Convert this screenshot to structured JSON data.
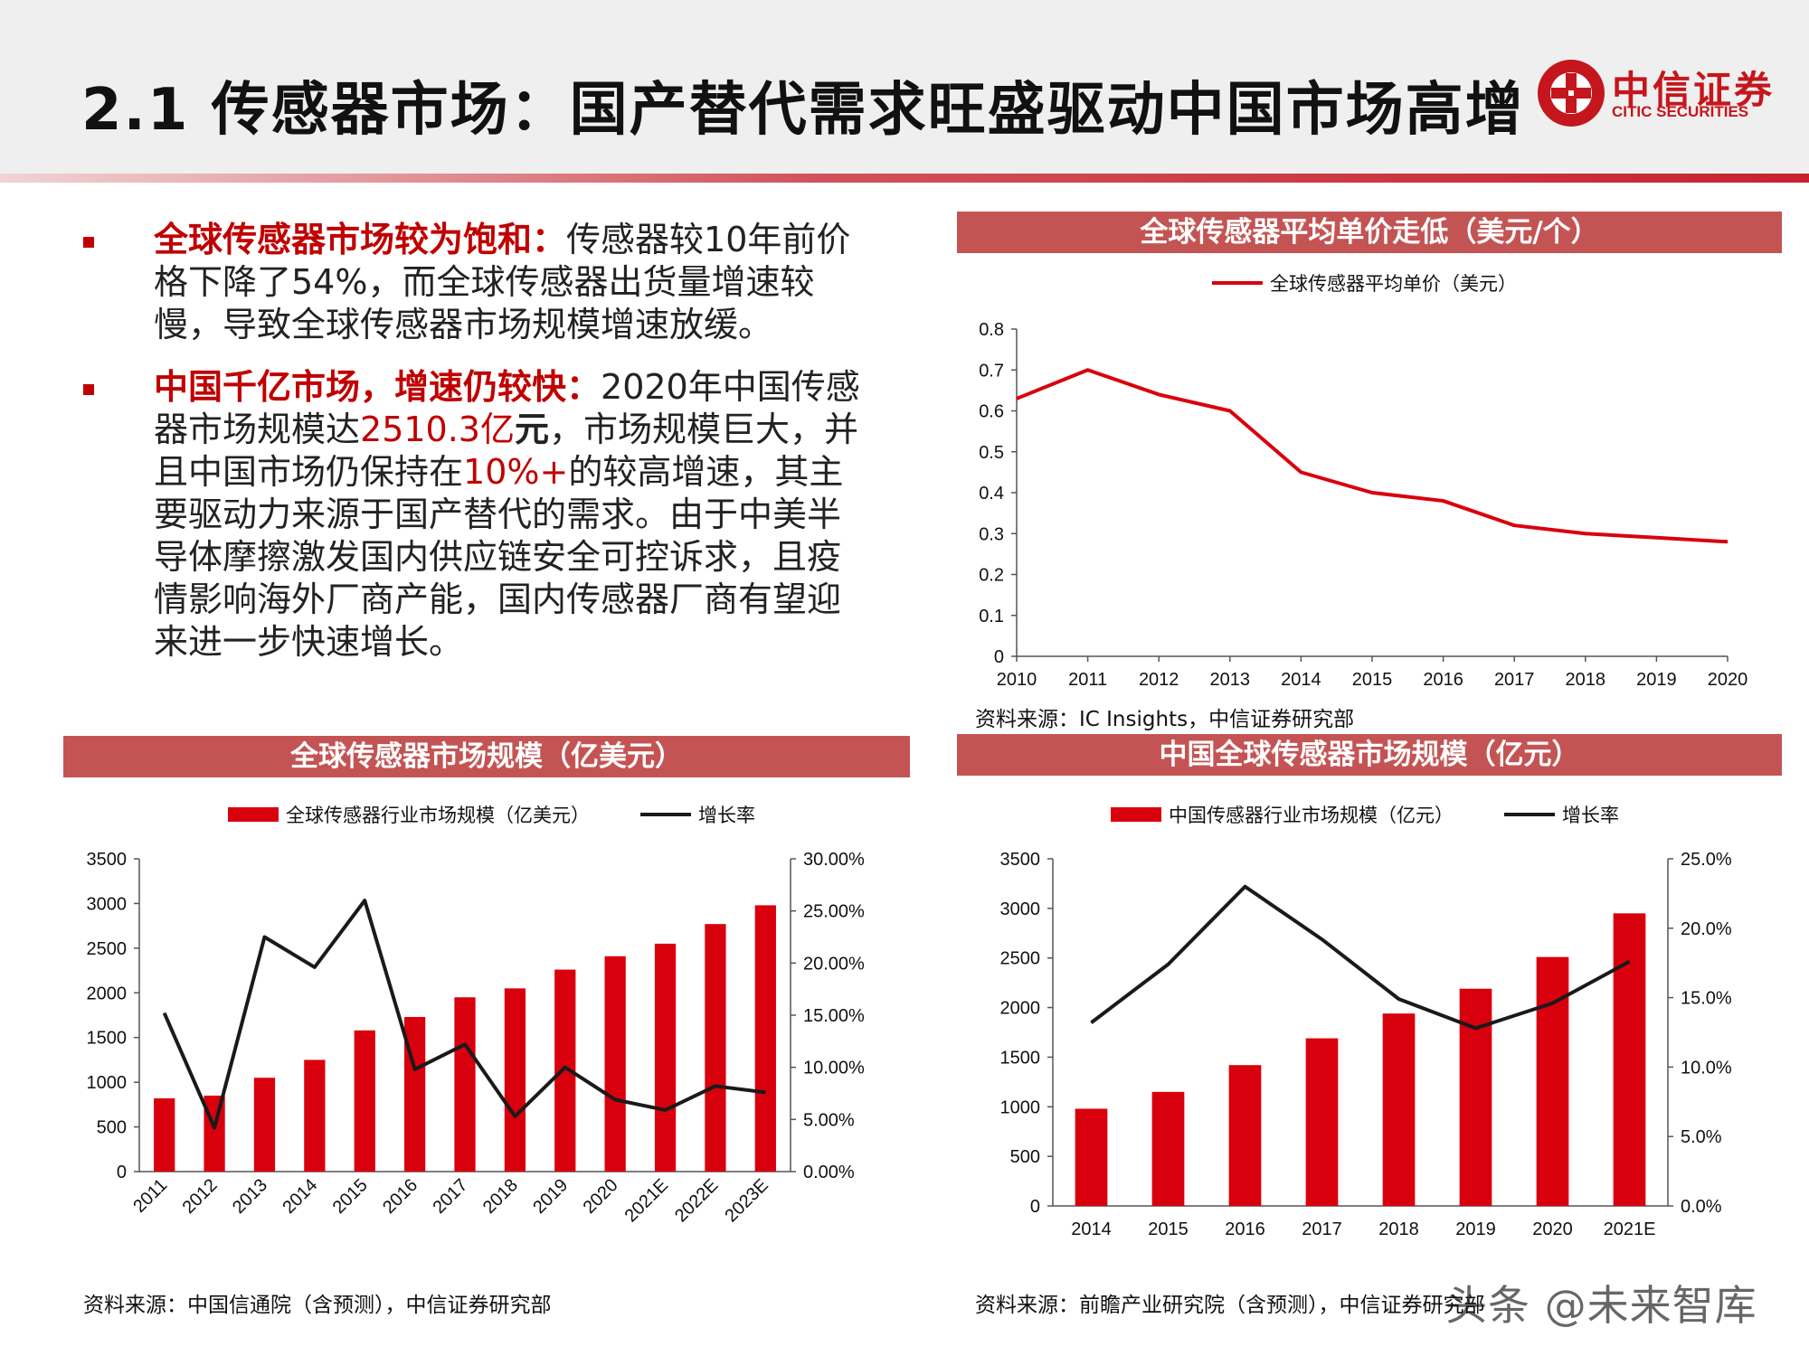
{
  "header": {
    "title": "2.1 传感器市场：国产替代需求旺盛驱动中国市场高增",
    "logo_cn": "中信证券",
    "logo_en": "CITIC SECURITIES"
  },
  "bullets": [
    {
      "heading": "全球传感器市场较为饱和：",
      "text": "传感器较10年前价格下降了54%，而全球传感器出货量增速较慢，导致全球传感器市场规模增速放缓。"
    },
    {
      "heading": "中国千亿市场，增速仍较快：",
      "t1": "2020年中国传感器市场规模达",
      "v1": "2510.3亿",
      "t2": "元",
      "t3": "，市场规模巨大，并且中国市场仍保持在",
      "v2": "10%+",
      "t4": "的较高增速，其主要驱动力来源于国产替代的需求。由于中美半导体摩擦激发国内供应链安全可控诉求，且疫情影响海外厂商产能，国内传感器厂商有望迎来进一步快速增长。"
    }
  ],
  "panels": {
    "price": {
      "title": "全球传感器平均单价走低（美元/个）",
      "source": "资料来源：IC Insights，中信证券研究部"
    },
    "global": {
      "title": "全球传感器市场规模（亿美元）",
      "source": "资料来源：中国信通院（含预测），中信证券研究部"
    },
    "china": {
      "title": "中国全球传感器市场规模（亿元）",
      "source": "资料来源：前瞻产业研究院（含预测），中信证券研究部"
    }
  },
  "watermark": "头条 @未来智库",
  "colors": {
    "red": "#d9000d",
    "black": "#1a1a1a",
    "panel_header": "#c45454"
  },
  "chart_data": [
    {
      "type": "line",
      "x": [
        "2010",
        "2011",
        "2012",
        "2013",
        "2014",
        "2015",
        "2016",
        "2017",
        "2018",
        "2019",
        "2020"
      ],
      "series": [
        {
          "name": "全球传感器平均单价（美元）",
          "values": [
            0.63,
            0.7,
            0.64,
            0.6,
            0.45,
            0.4,
            0.38,
            0.32,
            0.3,
            0.29,
            0.28
          ]
        }
      ],
      "ylim": [
        0,
        0.8
      ],
      "yticks": [
        "0",
        "0.1",
        "0.2",
        "0.3",
        "0.4",
        "0.5",
        "0.6",
        "0.7",
        "0.8"
      ],
      "legend": "top-center"
    },
    {
      "type": "bar",
      "categories": [
        "2011",
        "2012",
        "2013",
        "2014",
        "2015",
        "2016",
        "2017",
        "2018",
        "2019",
        "2020",
        "2021E",
        "2022E",
        "2023E"
      ],
      "series": [
        {
          "name": "全球传感器行业市场规模（亿美元）",
          "kind": "bar",
          "axis": "left",
          "values": [
            820,
            850,
            1050,
            1250,
            1580,
            1730,
            1950,
            2050,
            2260,
            2410,
            2550,
            2770,
            2980
          ]
        },
        {
          "name": "增长率",
          "kind": "line",
          "axis": "right",
          "values": [
            15.2,
            4.2,
            22.5,
            19.6,
            26.0,
            9.8,
            12.2,
            5.3,
            10.0,
            6.9,
            5.9,
            8.2,
            7.6
          ]
        }
      ],
      "ylim": [
        0,
        3500
      ],
      "yticks": [
        "0",
        "500",
        "1000",
        "1500",
        "2000",
        "2500",
        "3000",
        "3500"
      ],
      "y2lim": [
        0,
        30
      ],
      "y2ticks": [
        "0.00%",
        "5.00%",
        "10.00%",
        "15.00%",
        "20.00%",
        "25.00%",
        "30.00%"
      ],
      "legend": "top-center"
    },
    {
      "type": "bar",
      "categories": [
        "2014",
        "2015",
        "2016",
        "2017",
        "2018",
        "2019",
        "2020",
        "2021E"
      ],
      "series": [
        {
          "name": "中国传感器行业市场规模（亿元）",
          "kind": "bar",
          "axis": "left",
          "values": [
            980,
            1150,
            1420,
            1690,
            1940,
            2190,
            2510,
            2950
          ]
        },
        {
          "name": "增长率",
          "kind": "line",
          "axis": "right",
          "values": [
            13.2,
            17.4,
            23.0,
            19.2,
            14.9,
            12.8,
            14.6,
            17.6
          ]
        }
      ],
      "ylim": [
        0,
        3500
      ],
      "yticks": [
        "0",
        "500",
        "1000",
        "1500",
        "2000",
        "2500",
        "3000",
        "3500"
      ],
      "y2lim": [
        0,
        25
      ],
      "y2ticks": [
        "0.0%",
        "5.0%",
        "10.0%",
        "15.0%",
        "20.0%",
        "25.0%"
      ],
      "legend": "top-center"
    }
  ]
}
